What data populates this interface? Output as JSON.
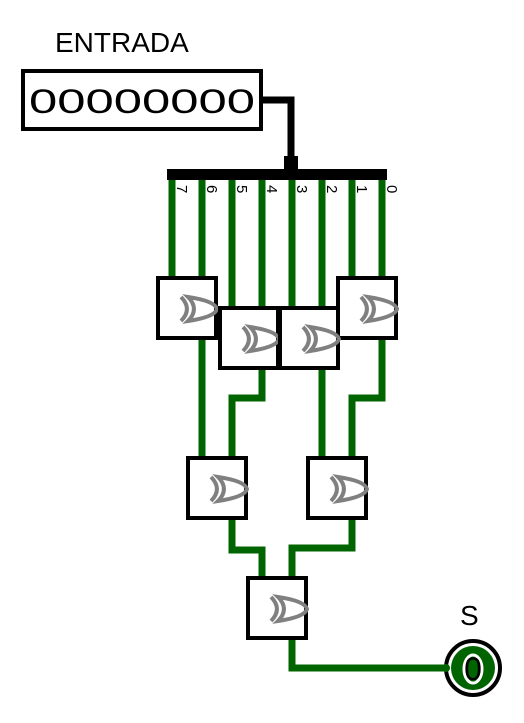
{
  "circuit": {
    "input_label": "ENTRADA",
    "input_value": "00000000",
    "output_label": "S",
    "output_value": "0",
    "bit_labels": [
      "7",
      "6",
      "5",
      "4",
      "3",
      "2",
      "1",
      "0"
    ],
    "colors": {
      "wire_active": "#006400",
      "wire_bus": "#000000",
      "gate_border": "#000000",
      "gate_symbol": "#808080",
      "output_led": "#006400"
    }
  }
}
